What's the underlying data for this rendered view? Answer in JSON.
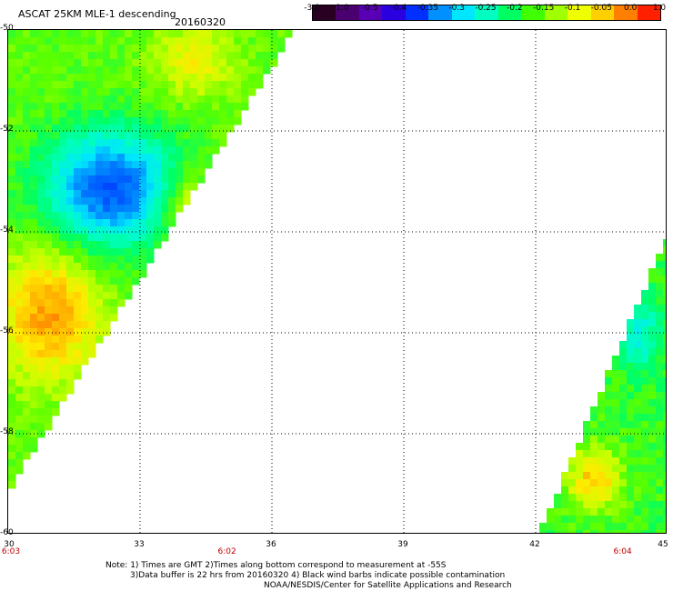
{
  "header": {
    "title": "ASCAT 25KM MLE-1 descending",
    "date": "20160320"
  },
  "colorbar": {
    "labels": [
      "-3.0",
      "-1.0",
      "-0.5",
      "-0.4",
      "-0.35",
      "-0.3",
      "-0.25",
      "-0.2",
      "-0.15",
      "-0.1",
      "-0.05",
      "0.0",
      "1.0"
    ],
    "colors": [
      "#2a0022",
      "#4b0070",
      "#5a00b4",
      "#2a00e0",
      "#0030ff",
      "#0090ff",
      "#00e6ff",
      "#00ffc0",
      "#00ff60",
      "#40ff00",
      "#a0ff00",
      "#f0ff00",
      "#ffd000",
      "#ff8000",
      "#ff2000"
    ]
  },
  "map": {
    "lon_range": [
      30,
      45
    ],
    "lat_range": [
      -60,
      -50
    ],
    "lat_ticks": [
      "-50",
      "-52",
      "-54",
      "-56",
      "-58",
      "-60"
    ],
    "lon_ticks": [
      "30",
      "33",
      "36",
      "39",
      "42",
      "45"
    ],
    "time_labels": [
      {
        "text": "6:03",
        "lon": 30
      },
      {
        "text": "6:02",
        "lon": 35
      },
      {
        "text": "6:04",
        "lon": 44
      }
    ],
    "swaths": [
      {
        "name": "west-swath",
        "coverage": "triangle lon 30-36.5, lat -50 to -59",
        "range": "-0.4 to 0.0"
      },
      {
        "name": "east-swath",
        "coverage": "triangle lon 41.8-45, lat -54.5 to -60",
        "range": "-0.3 to -0.05"
      }
    ]
  },
  "notes": {
    "line1": "Note: 1) Times are GMT 2)Times along bottom correspond to measurement at -55S",
    "line2": "3)Data buffer is 22 hrs from 20160320 4) Black wind barbs indicate possible contamination",
    "line3": "NOAA/NESDIS/Center for Satellite Applications and Research"
  }
}
